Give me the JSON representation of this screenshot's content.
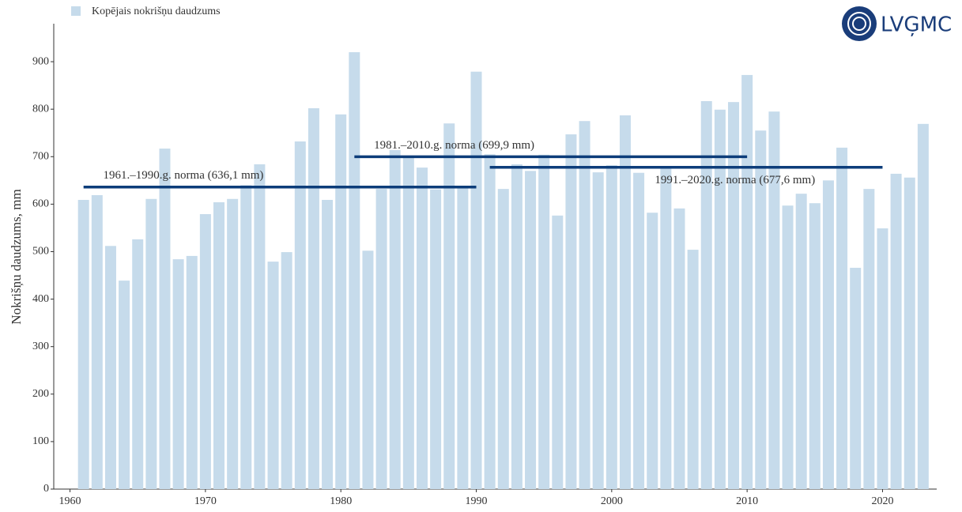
{
  "chart_data": {
    "type": "bar",
    "legend_label": "Kopējais nokrišņu daudzums",
    "logo": "LVĢMC",
    "y_label": "Nokrišņu daudzums, mm",
    "color": "#c6dbeb",
    "x": [
      1961,
      1962,
      1963,
      1964,
      1965,
      1966,
      1967,
      1968,
      1969,
      1970,
      1971,
      1972,
      1973,
      1974,
      1975,
      1976,
      1977,
      1978,
      1979,
      1980,
      1981,
      1982,
      1983,
      1984,
      1985,
      1986,
      1987,
      1988,
      1989,
      1990,
      1991,
      1992,
      1993,
      1994,
      1995,
      1996,
      1997,
      1998,
      1999,
      2000,
      2001,
      2002,
      2003,
      2004,
      2005,
      2006,
      2007,
      2008,
      2009,
      2010,
      2011,
      2012,
      2013,
      2014,
      2015,
      2016,
      2017,
      2018,
      2019,
      2020,
      2021,
      2022,
      2023
    ],
    "values": [
      609,
      619,
      512,
      439,
      526,
      611,
      717,
      484,
      491,
      579,
      604,
      611,
      640,
      684,
      479,
      499,
      732,
      802,
      609,
      789,
      920,
      502,
      632,
      714,
      702,
      677,
      631,
      770,
      637,
      879,
      705,
      632,
      684,
      670,
      704,
      576,
      747,
      775,
      667,
      682,
      787,
      666,
      582,
      679,
      591,
      504,
      817,
      799,
      815,
      872,
      755,
      795,
      597,
      622,
      602,
      650,
      719,
      466,
      632,
      549,
      664,
      656,
      769
    ],
    "xlim": [
      1958.8,
      2024
    ],
    "xticks": [
      1960,
      1970,
      1980,
      1990,
      2000,
      2010,
      2020
    ],
    "ylim": [
      0,
      980
    ],
    "yticks": [
      0,
      100,
      200,
      300,
      400,
      500,
      600,
      700,
      800,
      900
    ],
    "norms": [
      {
        "label": "1961.–1990.g. norma (636,1 mm)",
        "start": 1961,
        "end": 1990,
        "value": 636.1,
        "color": "#0d3d7a"
      },
      {
        "label": "1981.–2010.g. norma (699,9 mm)",
        "start": 1981,
        "end": 2010,
        "value": 699.9,
        "color": "#0d3d7a"
      },
      {
        "label": "1991.–2020.g. norma (677,6 mm)",
        "start": 1991,
        "end": 2020,
        "value": 677.6,
        "color": "#0d3d7a"
      }
    ]
  }
}
